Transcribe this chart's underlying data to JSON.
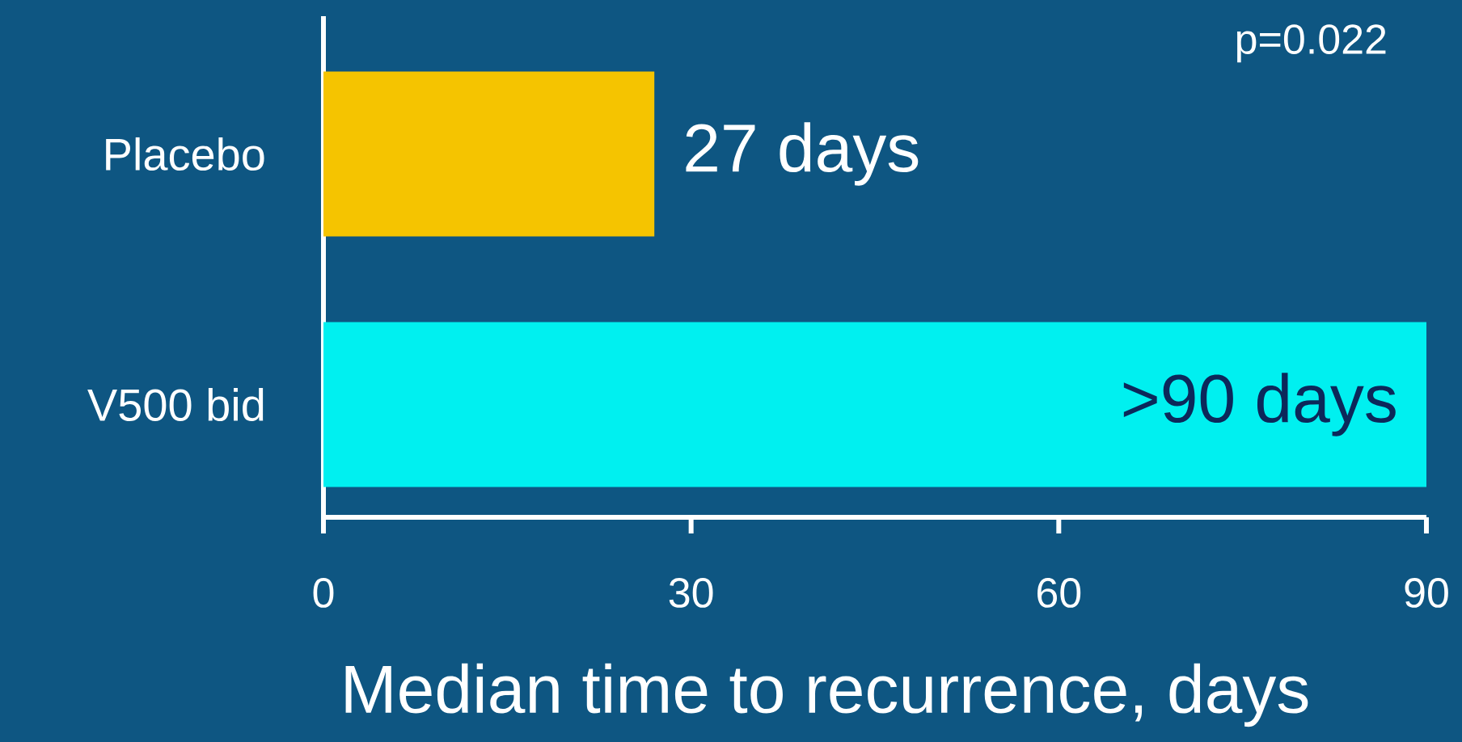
{
  "chart_data": {
    "type": "bar",
    "orientation": "horizontal",
    "categories": [
      "Placebo",
      "V500 bid"
    ],
    "values": [
      27,
      90
    ],
    "colors": [
      "#f5c400",
      "#00f0f0"
    ],
    "value_labels": [
      "27 days",
      ">90 days"
    ],
    "xlabel": "Median time to recurrence, days",
    "xlim": [
      0,
      90
    ],
    "xticks": [
      0,
      30,
      60,
      90
    ],
    "annotations": [
      "p=0.022"
    ],
    "grid": false
  }
}
